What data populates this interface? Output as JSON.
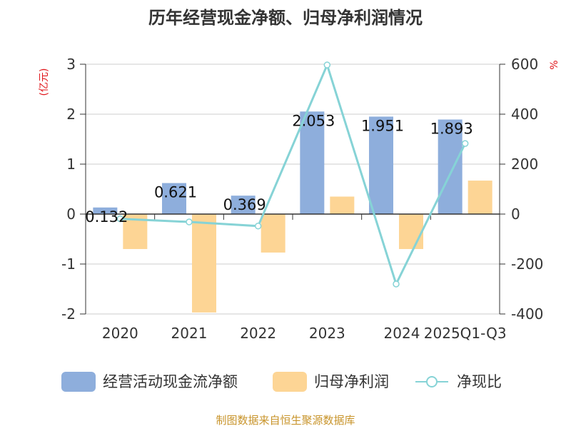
{
  "chart_data": {
    "type": "bar",
    "title": "历年经营现金净额、归母净利润情况",
    "categories": [
      "2020",
      "2021",
      "2022",
      "2023",
      "2024",
      "2025Q1-Q3"
    ],
    "series": [
      {
        "name": "经营活动现金流净额",
        "type": "bar",
        "axis": "left",
        "color": "#8eaedc",
        "values": [
          0.132,
          0.621,
          0.369,
          2.053,
          1.951,
          1.893
        ]
      },
      {
        "name": "归母净利润",
        "type": "bar",
        "axis": "left",
        "color": "#fdd595",
        "values": [
          -0.7,
          -1.97,
          -0.77,
          0.35,
          -0.7,
          0.67
        ]
      },
      {
        "name": "净现比",
        "type": "line",
        "axis": "right",
        "color": "#86d3d6",
        "values": [
          -18.9,
          -31.5,
          -48,
          597,
          -280,
          282.5
        ]
      }
    ],
    "data_labels": [
      "0.132",
      "0.621",
      "0.369",
      "2.053",
      "1.951",
      "1.893"
    ],
    "y_left": {
      "label": "(亿元)",
      "lim": [
        -2,
        3
      ],
      "ticks": [
        "-2",
        "-1",
        "0",
        "1",
        "2",
        "3"
      ]
    },
    "y_right": {
      "label": "%",
      "lim": [
        -400,
        600
      ],
      "ticks": [
        "-400",
        "-200",
        "0",
        "200",
        "400",
        "600"
      ]
    },
    "legend_position": "bottom",
    "grid": true
  },
  "footer": {
    "source": "制图数据来自恒生聚源数据库"
  },
  "colors": {
    "title": "#333333",
    "axis_label": "#e0161b",
    "source": "#c8942b",
    "grid": "#cccccc",
    "axis": "#333333"
  }
}
